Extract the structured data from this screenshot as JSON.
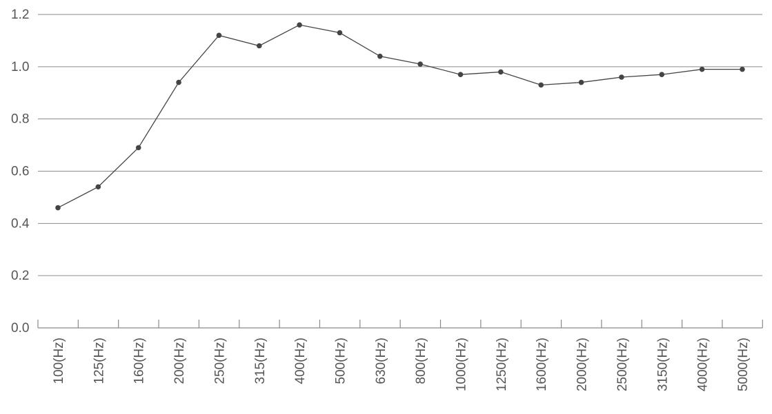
{
  "chart_data": {
    "type": "line",
    "title": "",
    "xlabel": "",
    "ylabel": "",
    "categories": [
      "100(Hz)",
      "125(Hz)",
      "160(Hz)",
      "200(Hz)",
      "250(Hz)",
      "315(Hz)",
      "400(Hz)",
      "500(Hz)",
      "630(Hz)",
      "800(Hz)",
      "1000(Hz)",
      "1250(Hz)",
      "1600(Hz)",
      "2000(Hz)",
      "2500(Hz)",
      "3150(Hz)",
      "4000(Hz)",
      "5000(Hz)"
    ],
    "series": [
      {
        "values": [
          0.46,
          0.54,
          0.69,
          0.94,
          1.12,
          1.08,
          1.16,
          1.13,
          1.04,
          1.01,
          0.97,
          0.98,
          0.93,
          0.94,
          0.96,
          0.97,
          0.99,
          0.99
        ],
        "color": "#444444"
      }
    ],
    "ylim": [
      0,
      1.2
    ],
    "yticks": [
      "0.0",
      "0.2",
      "0.4",
      "0.6",
      "0.8",
      "1.0",
      "1.2"
    ],
    "grid": true,
    "legend": "none",
    "colors": {
      "grid": "#8a8a8a",
      "text": "#555555",
      "line": "#444444"
    }
  }
}
